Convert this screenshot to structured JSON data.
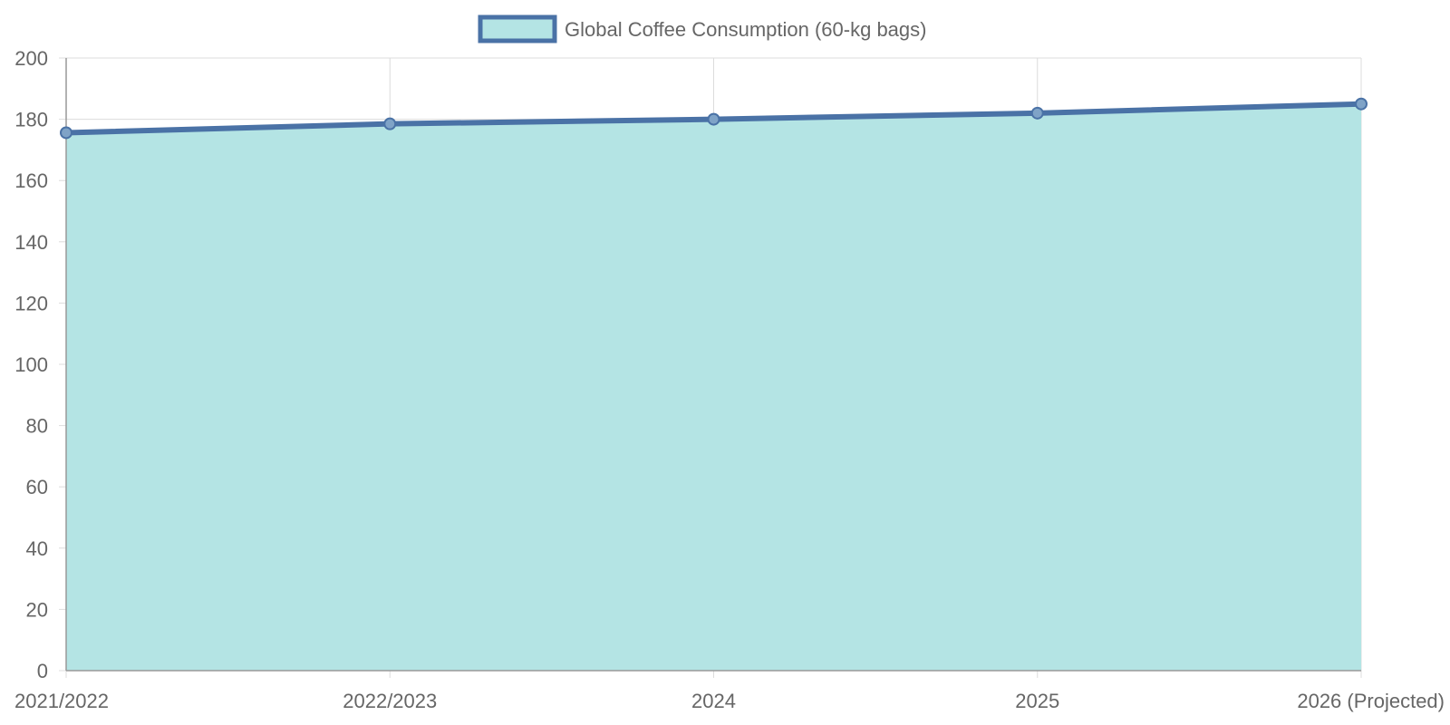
{
  "chart_data": {
    "type": "area",
    "categories": [
      "2021/2022",
      "2022/2023",
      "2024",
      "2025",
      "2026 (Projected)"
    ],
    "series": [
      {
        "name": "Global Coffee Consumption (60-kg bags)",
        "values": [
          175.6,
          178.5,
          180.0,
          182.0,
          185.0
        ]
      }
    ],
    "ylim": [
      0,
      200
    ],
    "yticks": [
      0,
      20,
      40,
      60,
      80,
      100,
      120,
      140,
      160,
      180,
      200
    ],
    "grid": true,
    "legend_position": "top-center"
  },
  "colors": {
    "line": "#4a72a6",
    "fill": "#b4e4e4",
    "grid": "#dcdcdc",
    "axis": "#999999",
    "text": "#666666"
  }
}
